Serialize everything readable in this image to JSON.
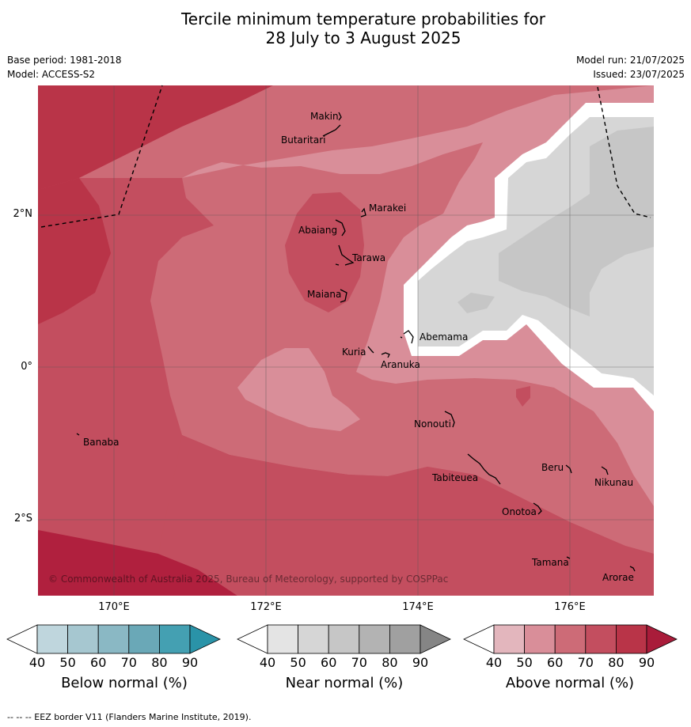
{
  "title_line1": "Tercile minimum temperature probabilities for",
  "title_line2": "28 July to 3 August 2025",
  "meta": {
    "base_period": "Base period: 1981-2018",
    "model": "Model: ACCESS-S2",
    "model_run": "Model run: 21/07/2025",
    "issued": "Issued: 23/07/2025"
  },
  "axes": {
    "lat_ticks": [
      "2°N",
      "0°",
      "2°S"
    ],
    "lon_ticks": [
      "170°E",
      "172°E",
      "174°E",
      "176°E"
    ]
  },
  "places": [
    "Makin",
    "Butaritari",
    "Marakei",
    "Abaiang",
    "Tarawa",
    "Maiana",
    "Abemama",
    "Kuria",
    "Aranuka",
    "Banaba",
    "Nonouti",
    "Tabiteuea",
    "Beru",
    "Nikunau",
    "Onotoa",
    "Tamana",
    "Arorae"
  ],
  "copyright": "© Commonwealth of Australia 2025, Bureau of Meteorology, supported by COSPPac",
  "colorbars": [
    {
      "label": "Below normal (%)",
      "ticks": [
        "40",
        "50",
        "60",
        "70",
        "80",
        "90"
      ],
      "colors": [
        "#ffffff",
        "#bfd6dd",
        "#a6c7d0",
        "#8ab8c4",
        "#6aa8b7",
        "#44a0b2",
        "#2a93a8"
      ]
    },
    {
      "label": "Near normal (%)",
      "ticks": [
        "40",
        "50",
        "60",
        "70",
        "80",
        "90"
      ],
      "colors": [
        "#ffffff",
        "#e4e4e4",
        "#d6d6d6",
        "#c6c6c6",
        "#b3b3b3",
        "#a0a0a0",
        "#858585"
      ]
    },
    {
      "label": "Above normal (%)",
      "ticks": [
        "40",
        "50",
        "60",
        "70",
        "80",
        "90"
      ],
      "colors": [
        "#ffffff",
        "#e3b6bd",
        "#d98e99",
        "#cd6b77",
        "#c34e5f",
        "#b93448",
        "#a91c3a"
      ]
    }
  ],
  "footer": "--  --  -- EEZ border V11 (Flanders Marine Institute, 2019)."
}
